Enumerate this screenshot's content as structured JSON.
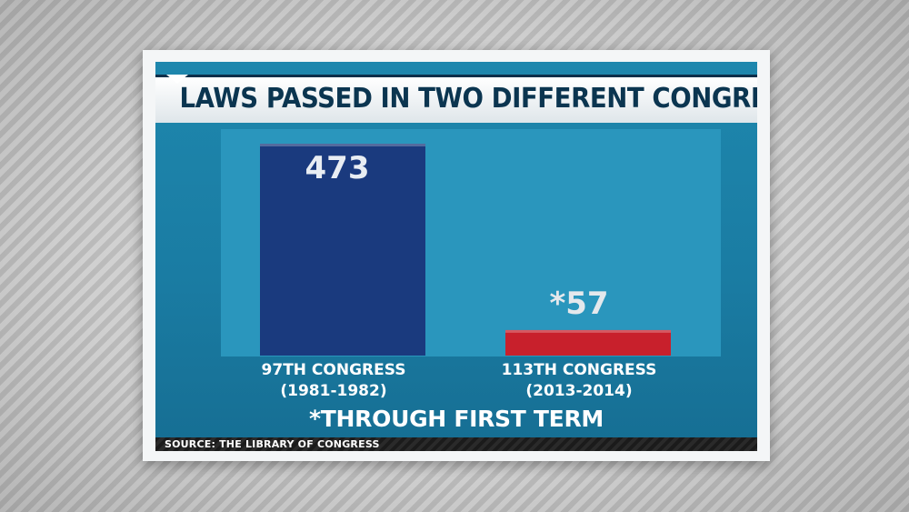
{
  "chart_data": {
    "type": "bar",
    "title": "LAWS PASSED IN TWO DIFFERENT CONGRESSES",
    "categories": [
      {
        "line1": "97TH CONGRESS",
        "line2": "(1981-1982)"
      },
      {
        "line1": "113TH CONGRESS",
        "line2": "(2013-2014)"
      }
    ],
    "values": [
      473,
      57
    ],
    "value_labels": [
      "473",
      "*57"
    ],
    "bar_colors": [
      "#1a3a7e",
      "#c8202c"
    ],
    "ylim": [
      0,
      473
    ],
    "grid": false,
    "footnote": "*THROUGH FIRST TERM",
    "source": "SOURCE: THE LIBRARY OF CONGRESS"
  }
}
